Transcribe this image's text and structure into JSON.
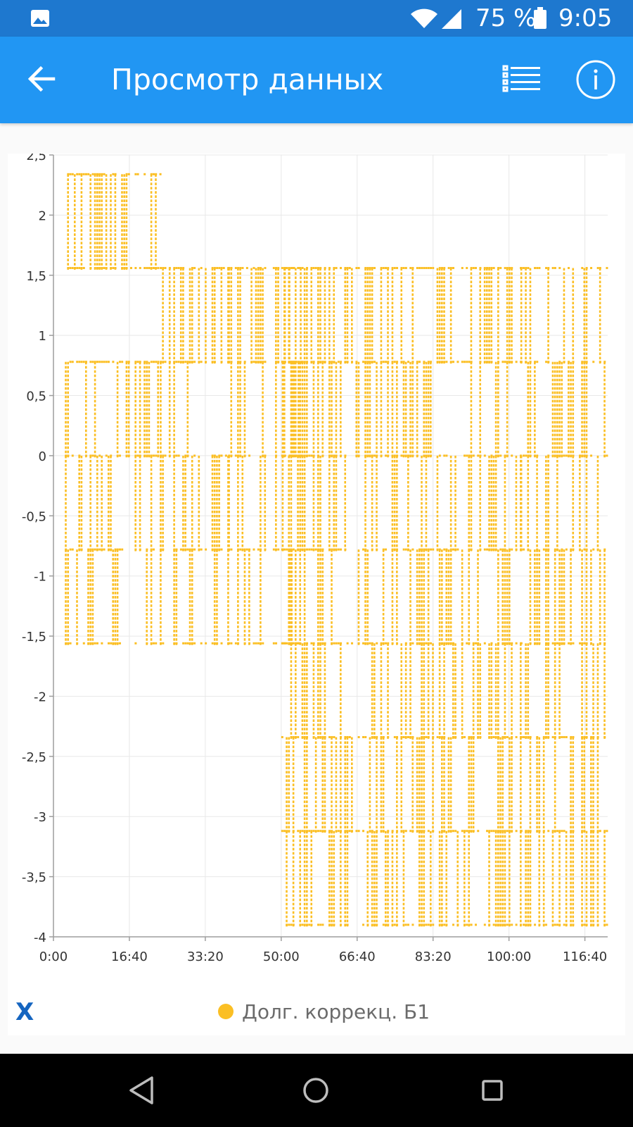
{
  "status_bar": {
    "battery_text": "75 %",
    "time": "9:05",
    "icons": [
      "gallery-icon",
      "wifi-icon",
      "signal-icon",
      "battery-icon"
    ]
  },
  "app_bar": {
    "title": "Просмотр данных",
    "icons": [
      "back-arrow-icon",
      "list-icon",
      "info-icon"
    ]
  },
  "x_button": "X",
  "colors": {
    "status_bar": "#1e78cf",
    "app_bar": "#2196f3",
    "series": "#fbbf24",
    "x_button": "#1565c0"
  },
  "chart_data": {
    "type": "scatter",
    "y_ticks": [
      "2,5",
      "2",
      "1,5",
      "1",
      "0,5",
      "0",
      "-0,5",
      "-1",
      "-1,5",
      "-2",
      "-2,5",
      "-3",
      "-3,5",
      "-4"
    ],
    "x_ticks": [
      "0:00",
      "16:40",
      "33:20",
      "50:00",
      "66:40",
      "83:20",
      "100:00",
      "116:40"
    ],
    "x_tick_seconds": [
      0,
      1000,
      2000,
      3000,
      4000,
      5000,
      6000,
      7000
    ],
    "xlim_seconds": [
      0,
      7300
    ],
    "ylim": [
      -4,
      2.5
    ],
    "grid": true,
    "legend_position": "bottom",
    "series": [
      {
        "name": "Долг. коррекц. Б1",
        "color": "#fbbf24",
        "levels": [
          2.34,
          1.56,
          0.78,
          0,
          -0.78,
          -1.56,
          -2.34,
          -3.12,
          -3.9
        ],
        "segments": [
          {
            "x": [
              150,
              1400
            ],
            "levels": [
              2.34,
              1.56
            ]
          },
          {
            "x": [
              150,
              1400
            ],
            "levels": [
              0.78,
              0,
              -0.78,
              -1.56
            ]
          },
          {
            "x": [
              1400,
              2300
            ],
            "levels": [
              1.56,
              0.78,
              0,
              -0.78,
              -1.56
            ]
          },
          {
            "x": [
              2300,
              2800
            ],
            "levels": [
              1.56,
              0.78,
              0,
              -0.78,
              -1.56
            ]
          },
          {
            "x": [
              2800,
              3300
            ],
            "levels": [
              1.56,
              0.78,
              0,
              -0.78,
              -1.56
            ]
          },
          {
            "x": [
              3000,
              6150
            ],
            "levels": [
              1.56,
              0.78,
              0,
              -0.78,
              -1.56,
              -2.34,
              -3.12,
              -3.9
            ]
          },
          {
            "x": [
              6150,
              7300
            ],
            "levels": [
              1.56,
              0.78,
              0,
              -0.78,
              -1.56,
              -2.34,
              -3.12,
              -3.9
            ]
          }
        ]
      }
    ]
  }
}
